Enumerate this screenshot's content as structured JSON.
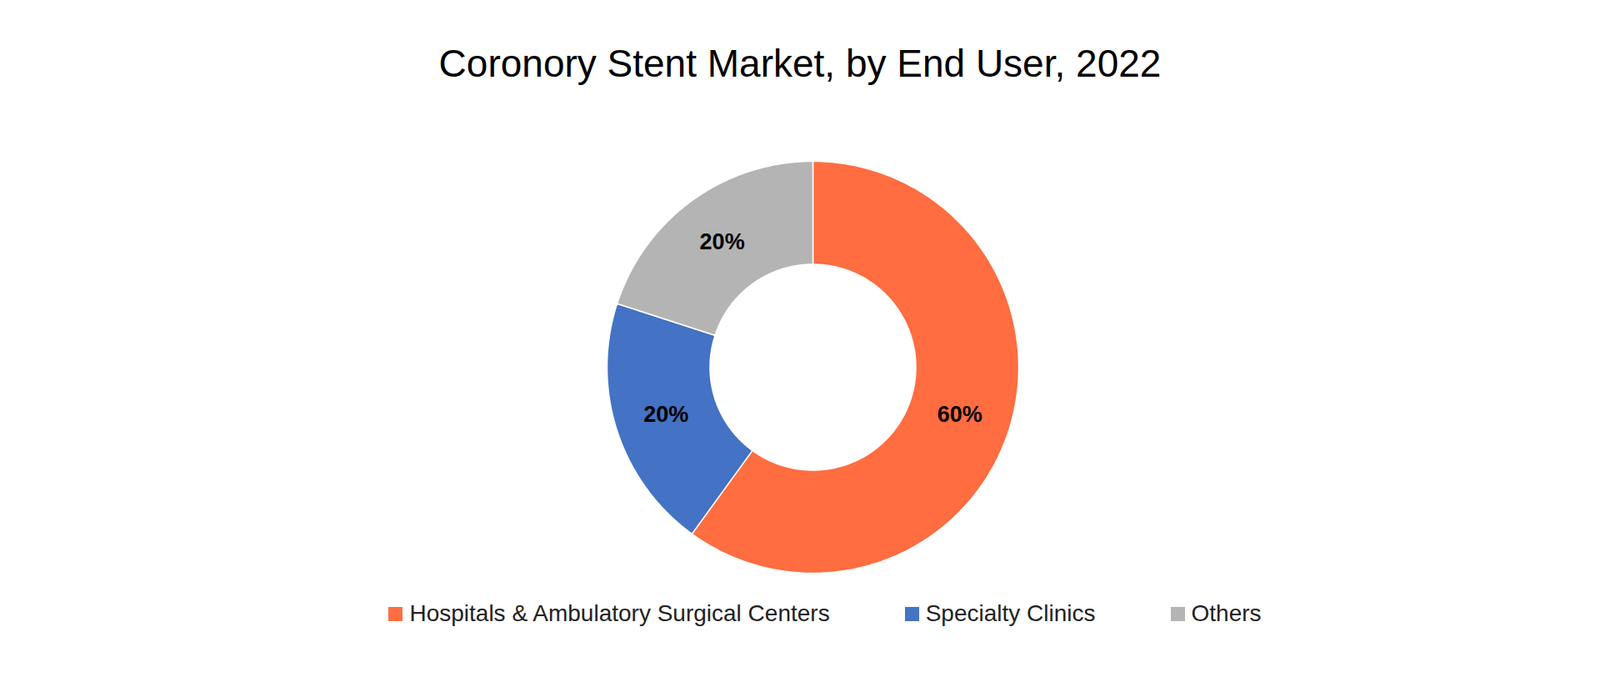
{
  "chart_data": {
    "type": "donut",
    "title": "Coronory Stent Market, by End User, 2022",
    "categories": [
      "Hospitals & Ambulatory Surgical Centers",
      "Specialty Clinics",
      "Others"
    ],
    "values": [
      60,
      20,
      20
    ],
    "value_labels": [
      "60%",
      "20%",
      "20%"
    ],
    "colors": [
      "#ff6d40",
      "#4472c4",
      "#b4b4b4"
    ],
    "data_labels": true,
    "legend": "bottom"
  }
}
